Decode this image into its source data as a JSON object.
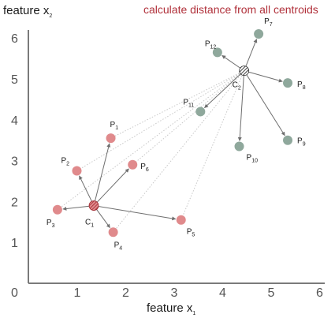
{
  "caption": "calculate distance from all centroids",
  "y_axis_title": {
    "main": "feature x",
    "sub": "2"
  },
  "x_axis_title": {
    "main": "feature x",
    "sub": "1"
  },
  "x_ticks": [
    "0",
    "1",
    "2",
    "3",
    "4",
    "5",
    "6"
  ],
  "y_ticks": [
    "1",
    "2",
    "3",
    "4",
    "5",
    "6"
  ],
  "colors": {
    "cluster1_point": "#e08a8c",
    "cluster2_point": "#8fa89c",
    "centroid1": "#a0262e",
    "centroid2": "#2b2b2b",
    "connector_solid": "#6e6e6e",
    "connector_dotted": "#c8c8c8",
    "caption": "#b0303a"
  },
  "centroids": [
    {
      "id": "C1",
      "label": "C",
      "sub": "1",
      "x": 1.35,
      "y": 1.9
    },
    {
      "id": "C2",
      "label": "C",
      "sub": "2",
      "x": 4.45,
      "y": 5.2
    }
  ],
  "points": [
    {
      "id": "P1",
      "label": "P",
      "sub": "1",
      "cluster": 1,
      "x": 1.7,
      "y": 3.55
    },
    {
      "id": "P2",
      "label": "P",
      "sub": "2",
      "cluster": 1,
      "x": 1.0,
      "y": 2.75
    },
    {
      "id": "P3",
      "label": "P",
      "sub": "3",
      "cluster": 1,
      "x": 0.6,
      "y": 1.8
    },
    {
      "id": "P4",
      "label": "P",
      "sub": "4",
      "cluster": 1,
      "x": 1.75,
      "y": 1.25
    },
    {
      "id": "P5",
      "label": "P",
      "sub": "5",
      "cluster": 1,
      "x": 3.15,
      "y": 1.55
    },
    {
      "id": "P6",
      "label": "P",
      "sub": "6",
      "cluster": 1,
      "x": 2.15,
      "y": 2.9
    },
    {
      "id": "P7",
      "label": "P",
      "sub": "7",
      "cluster": 2,
      "x": 4.75,
      "y": 6.1
    },
    {
      "id": "P8",
      "label": "P",
      "sub": "8",
      "cluster": 2,
      "x": 5.35,
      "y": 4.9
    },
    {
      "id": "P9",
      "label": "P",
      "sub": "9",
      "cluster": 2,
      "x": 5.35,
      "y": 3.5
    },
    {
      "id": "P10",
      "label": "P",
      "sub": "10",
      "cluster": 2,
      "x": 4.35,
      "y": 3.35
    },
    {
      "id": "P11",
      "label": "P",
      "sub": "11",
      "cluster": 2,
      "x": 3.55,
      "y": 4.2
    },
    {
      "id": "P12",
      "label": "P",
      "sub": "12",
      "cluster": 2,
      "x": 3.9,
      "y": 5.65
    }
  ]
}
